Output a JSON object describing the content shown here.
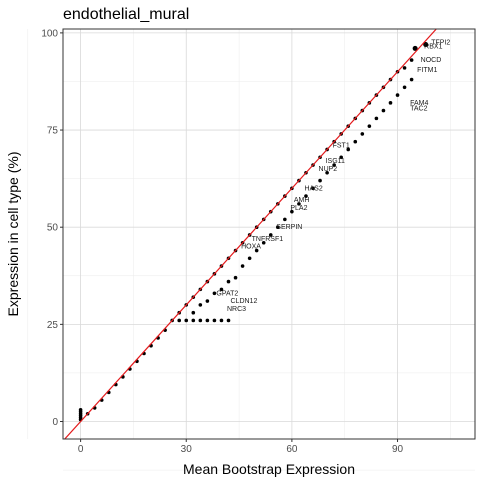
{
  "chart_data": {
    "type": "scatter",
    "title": "endothelial_mural",
    "xlabel": "Mean Bootstrap Expression",
    "ylabel": "Expression in cell type (%)",
    "xlim": [
      -5,
      112
    ],
    "ylim": [
      -4.5,
      101
    ],
    "xticks": [
      0,
      30,
      60,
      90
    ],
    "yticks": [
      0,
      25,
      50,
      75,
      100
    ],
    "grid": true,
    "reference_line": {
      "slope": 1,
      "intercept": 0,
      "color": "#e41a1c"
    },
    "point_color": "#000000",
    "highlighted_points": [
      {
        "x": 95,
        "y": 96,
        "label": ""
      },
      {
        "x": 98,
        "y": 97,
        "label": "TFPI2"
      }
    ],
    "point_labels": [
      {
        "x": 99,
        "y": 97.5,
        "label": "TFPI2"
      },
      {
        "x": 97,
        "y": 96.5,
        "label": "RBX1"
      },
      {
        "x": 96,
        "y": 93,
        "label": "NOCD"
      },
      {
        "x": 95,
        "y": 90.5,
        "label": "FITM1"
      },
      {
        "x": 93,
        "y": 82,
        "label": "FAM4"
      },
      {
        "x": 93,
        "y": 80.5,
        "label": "TAC2"
      },
      {
        "x": 71,
        "y": 71,
        "label": "FST1"
      },
      {
        "x": 69,
        "y": 67,
        "label": "ISG11"
      },
      {
        "x": 67,
        "y": 65,
        "label": "NUP2"
      },
      {
        "x": 63,
        "y": 60,
        "label": "HAS2"
      },
      {
        "x": 60,
        "y": 57,
        "label": "AMH"
      },
      {
        "x": 59,
        "y": 55,
        "label": "PLA2"
      },
      {
        "x": 55,
        "y": 50,
        "label": "SERPIN"
      },
      {
        "x": 48,
        "y": 47,
        "label": "TNFRSF1"
      },
      {
        "x": 45,
        "y": 45,
        "label": "HOXA"
      },
      {
        "x": 42,
        "y": 31,
        "label": "CLDN12"
      },
      {
        "x": 41,
        "y": 29,
        "label": "NRC3"
      },
      {
        "x": 38,
        "y": 33,
        "label": "GPAT2"
      }
    ],
    "series": [
      {
        "name": "",
        "note": "dense points along the diagonal from (0,0) to (~97,~97); a flat floor at y≈26 for x from ~26 to ~42; a vertical cluster at x≈0 from y≈0 to ~3",
        "points": [
          [
            0,
            0.5
          ],
          [
            0,
            1
          ],
          [
            0,
            1.5
          ],
          [
            0,
            2
          ],
          [
            0,
            2.5
          ],
          [
            0,
            3
          ],
          [
            2,
            2
          ],
          [
            4,
            3.5
          ],
          [
            6,
            5.5
          ],
          [
            8,
            7.5
          ],
          [
            10,
            9.5
          ],
          [
            12,
            11.5
          ],
          [
            14,
            13.5
          ],
          [
            16,
            15.5
          ],
          [
            18,
            17.5
          ],
          [
            20,
            19.5
          ],
          [
            22,
            21.5
          ],
          [
            24,
            23.5
          ],
          [
            26,
            26
          ],
          [
            28,
            26
          ],
          [
            30,
            26
          ],
          [
            32,
            26
          ],
          [
            34,
            26
          ],
          [
            36,
            26
          ],
          [
            38,
            26
          ],
          [
            40,
            26
          ],
          [
            42,
            26
          ],
          [
            28,
            28
          ],
          [
            30,
            30
          ],
          [
            32,
            32
          ],
          [
            34,
            34
          ],
          [
            36,
            36
          ],
          [
            38,
            38
          ],
          [
            40,
            40
          ],
          [
            32,
            28
          ],
          [
            34,
            30
          ],
          [
            36,
            31
          ],
          [
            38,
            33
          ],
          [
            40,
            34
          ],
          [
            42,
            36
          ],
          [
            44,
            37
          ],
          [
            42,
            42
          ],
          [
            44,
            44
          ],
          [
            46,
            46
          ],
          [
            48,
            48
          ],
          [
            50,
            50
          ],
          [
            52,
            52
          ],
          [
            54,
            54
          ],
          [
            46,
            40
          ],
          [
            48,
            42
          ],
          [
            50,
            44
          ],
          [
            52,
            46
          ],
          [
            54,
            48
          ],
          [
            56,
            50
          ],
          [
            58,
            52
          ],
          [
            56,
            56
          ],
          [
            58,
            58
          ],
          [
            60,
            60
          ],
          [
            62,
            62
          ],
          [
            64,
            64
          ],
          [
            66,
            66
          ],
          [
            68,
            68
          ],
          [
            60,
            54
          ],
          [
            62,
            56
          ],
          [
            64,
            58
          ],
          [
            66,
            60
          ],
          [
            68,
            62
          ],
          [
            70,
            64
          ],
          [
            72,
            66
          ],
          [
            70,
            70
          ],
          [
            72,
            72
          ],
          [
            74,
            74
          ],
          [
            76,
            76
          ],
          [
            78,
            78
          ],
          [
            80,
            80
          ],
          [
            82,
            82
          ],
          [
            74,
            68
          ],
          [
            76,
            70
          ],
          [
            78,
            72
          ],
          [
            80,
            74
          ],
          [
            82,
            76
          ],
          [
            84,
            78
          ],
          [
            86,
            80
          ],
          [
            84,
            84
          ],
          [
            86,
            86
          ],
          [
            88,
            88
          ],
          [
            90,
            90
          ],
          [
            92,
            91
          ],
          [
            94,
            93
          ],
          [
            88,
            82
          ],
          [
            90,
            84
          ],
          [
            92,
            86
          ],
          [
            94,
            88
          ]
        ]
      }
    ]
  }
}
